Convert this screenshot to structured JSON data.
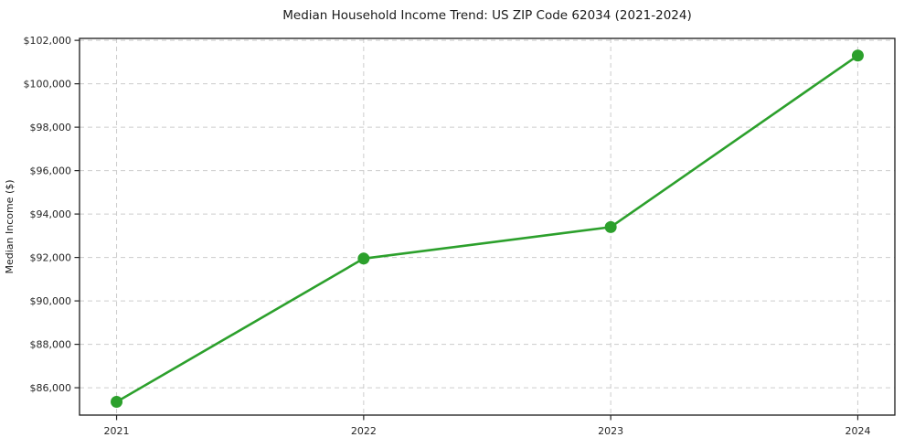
{
  "chart_data": {
    "type": "line",
    "title": "Median Household Income Trend: US ZIP Code 62034 (2021-2024)",
    "xlabel": "",
    "ylabel": "Median Income ($)",
    "categories": [
      "2021",
      "2022",
      "2023",
      "2024"
    ],
    "values": [
      85350,
      91950,
      93400,
      101300
    ],
    "yticks": [
      86000,
      88000,
      90000,
      92000,
      94000,
      96000,
      98000,
      100000,
      102000
    ],
    "ytick_prefix": "$",
    "ylim": [
      84740,
      102090
    ],
    "grid": "dashed-both-axes",
    "legend": "none",
    "marker": "circle",
    "colors": {
      "line": "#2ca02c",
      "marker": "#2ca02c",
      "grid": "#cccccc",
      "frame": "#1a1a1a",
      "text": "#262626",
      "background": "#ffffff"
    }
  }
}
